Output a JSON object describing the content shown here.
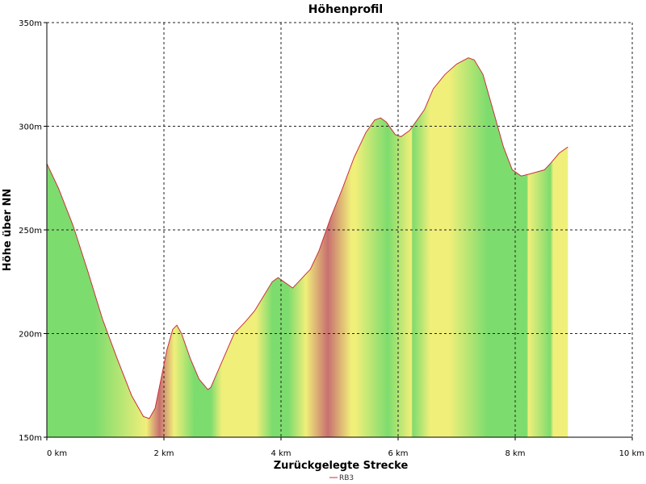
{
  "chart_data": {
    "type": "area",
    "title": "Höhenprofil",
    "xlabel": "Zurückgelegte Strecke",
    "ylabel": "Höhe über NN",
    "xlim": [
      0,
      10
    ],
    "ylim": [
      150,
      350
    ],
    "x_ticks": [
      0,
      2,
      4,
      6,
      8,
      10
    ],
    "x_tick_labels": [
      "0 km",
      "2 km",
      "4 km",
      "6 km",
      "8 km",
      "10 km"
    ],
    "y_ticks": [
      150,
      200,
      250,
      300,
      350
    ],
    "y_tick_labels": [
      "150m",
      "200m",
      "250m",
      "300m",
      "350m"
    ],
    "grid": true,
    "legend_position": "bottom-center",
    "colors": {
      "line": "#c8323c",
      "gentle": "#7ddc6e",
      "moderate": "#f0ef7a",
      "steep": "#c87070"
    },
    "series": [
      {
        "name": "RB3",
        "x": [
          0,
          0.2,
          0.45,
          0.7,
          0.95,
          1.2,
          1.45,
          1.65,
          1.75,
          1.85,
          1.95,
          2.05,
          2.15,
          2.22,
          2.3,
          2.45,
          2.6,
          2.75,
          2.8,
          3.0,
          3.2,
          3.4,
          3.55,
          3.7,
          3.85,
          3.95,
          4.05,
          4.2,
          4.3,
          4.5,
          4.65,
          4.85,
          5.05,
          5.25,
          5.45,
          5.6,
          5.7,
          5.8,
          5.95,
          6.05,
          6.2,
          6.45,
          6.6,
          6.8,
          7.0,
          7.2,
          7.3,
          7.45,
          7.6,
          7.8,
          7.95,
          8.1,
          8.25,
          8.5,
          8.6,
          8.75,
          8.9
        ],
        "y": [
          282,
          270,
          252,
          230,
          207,
          188,
          170,
          160,
          159,
          164,
          178,
          192,
          202,
          204,
          200,
          188,
          178,
          173,
          174,
          187,
          200,
          206,
          211,
          218,
          225,
          227,
          225,
          222,
          225,
          231,
          240,
          256,
          270,
          285,
          297,
          303,
          304,
          302,
          296,
          295,
          298,
          308,
          318,
          325,
          330,
          333,
          332,
          325,
          310,
          290,
          279,
          276,
          277,
          279,
          282,
          287,
          290
        ]
      }
    ],
    "gradient_bands": [
      {
        "from": 0,
        "to": 1.65,
        "grade": "gentle"
      },
      {
        "from": 1.65,
        "to": 1.75,
        "grade": "moderate"
      },
      {
        "from": 1.75,
        "to": 2.1,
        "grade": "steep"
      },
      {
        "from": 2.1,
        "to": 2.25,
        "grade": "moderate"
      },
      {
        "from": 2.25,
        "to": 2.78,
        "grade": "gentle"
      },
      {
        "from": 2.78,
        "to": 3.2,
        "grade": "moderate"
      },
      {
        "from": 3.2,
        "to": 3.45,
        "grade": "moderate"
      },
      {
        "from": 3.45,
        "to": 3.7,
        "grade": "moderate"
      },
      {
        "from": 3.7,
        "to": 4.0,
        "grade": "gentle"
      },
      {
        "from": 4.0,
        "to": 4.25,
        "grade": "gentle"
      },
      {
        "from": 4.25,
        "to": 4.6,
        "grade": "moderate"
      },
      {
        "from": 4.6,
        "to": 5.0,
        "grade": "steep"
      },
      {
        "from": 5.0,
        "to": 5.55,
        "grade": "moderate"
      },
      {
        "from": 5.55,
        "to": 6.1,
        "grade": "gentle"
      },
      {
        "from": 6.1,
        "to": 6.35,
        "grade": "moderate"
      },
      {
        "from": 6.35,
        "to": 6.75,
        "grade": "moderate"
      },
      {
        "from": 6.75,
        "to": 7.0,
        "grade": "moderate"
      },
      {
        "from": 7.0,
        "to": 8.05,
        "grade": "gentle"
      },
      {
        "from": 8.05,
        "to": 8.4,
        "grade": "moderate"
      },
      {
        "from": 8.4,
        "to": 8.9,
        "grade": "moderate"
      }
    ]
  }
}
